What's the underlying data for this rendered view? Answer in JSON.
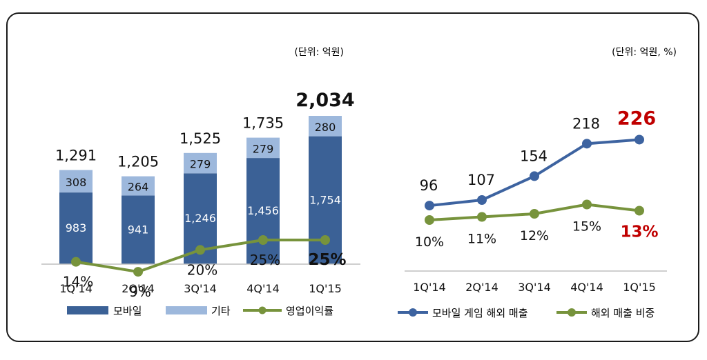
{
  "colors": {
    "mobile": "#3b6196",
    "other": "#9db8dc",
    "line_green": "#77933c",
    "line_blue": "#3d63a0",
    "highlight_red": "#c00000",
    "text": "#111111",
    "white": "#ffffff"
  },
  "chart_data": [
    {
      "type": "bar",
      "stacked": true,
      "unit_note": "(단위:  억원)",
      "categories": [
        "1Q'14",
        "2Q'14",
        "3Q'14",
        "4Q'14",
        "1Q'15"
      ],
      "series": [
        {
          "name": "모바일",
          "values": [
            983,
            941,
            1246,
            1456,
            1754
          ],
          "labels": [
            "983",
            "941",
            "1,246",
            "1,456",
            "1,754"
          ]
        },
        {
          "name": "기타",
          "values": [
            308,
            264,
            279,
            279,
            280
          ],
          "labels": [
            "308",
            "264",
            "279",
            "279",
            "280"
          ]
        }
      ],
      "totals": [
        1291,
        1205,
        1525,
        1735,
        2034
      ],
      "total_labels": [
        "1,291",
        "1,205",
        "1,525",
        "1,735",
        "2,034"
      ],
      "line": {
        "name": "영업이익률",
        "values": [
          14,
          9,
          20,
          25,
          25
        ],
        "labels": [
          "14%",
          "9%",
          "20%",
          "25%",
          "25%"
        ]
      },
      "ylim": [
        0,
        2100
      ],
      "line_ylim": [
        0,
        60
      ],
      "legend_position": "bottom",
      "grid": false
    },
    {
      "type": "line",
      "unit_note": "(단위:  억원, %)",
      "categories": [
        "1Q'14",
        "2Q'14",
        "3Q'14",
        "4Q'14",
        "1Q'15"
      ],
      "series": [
        {
          "name": "모바일 게임 해외 매출",
          "values": [
            96,
            107,
            154,
            218,
            226
          ],
          "labels": [
            "96",
            "107",
            "154",
            "218",
            "226"
          ]
        },
        {
          "name": "해외 매출 비중",
          "values": [
            10,
            11,
            12,
            15,
            13
          ],
          "labels": [
            "10%",
            "11%",
            "12%",
            "15%",
            "13%"
          ]
        }
      ],
      "ylim": [
        0,
        300
      ],
      "legend_position": "bottom",
      "grid": false
    }
  ]
}
